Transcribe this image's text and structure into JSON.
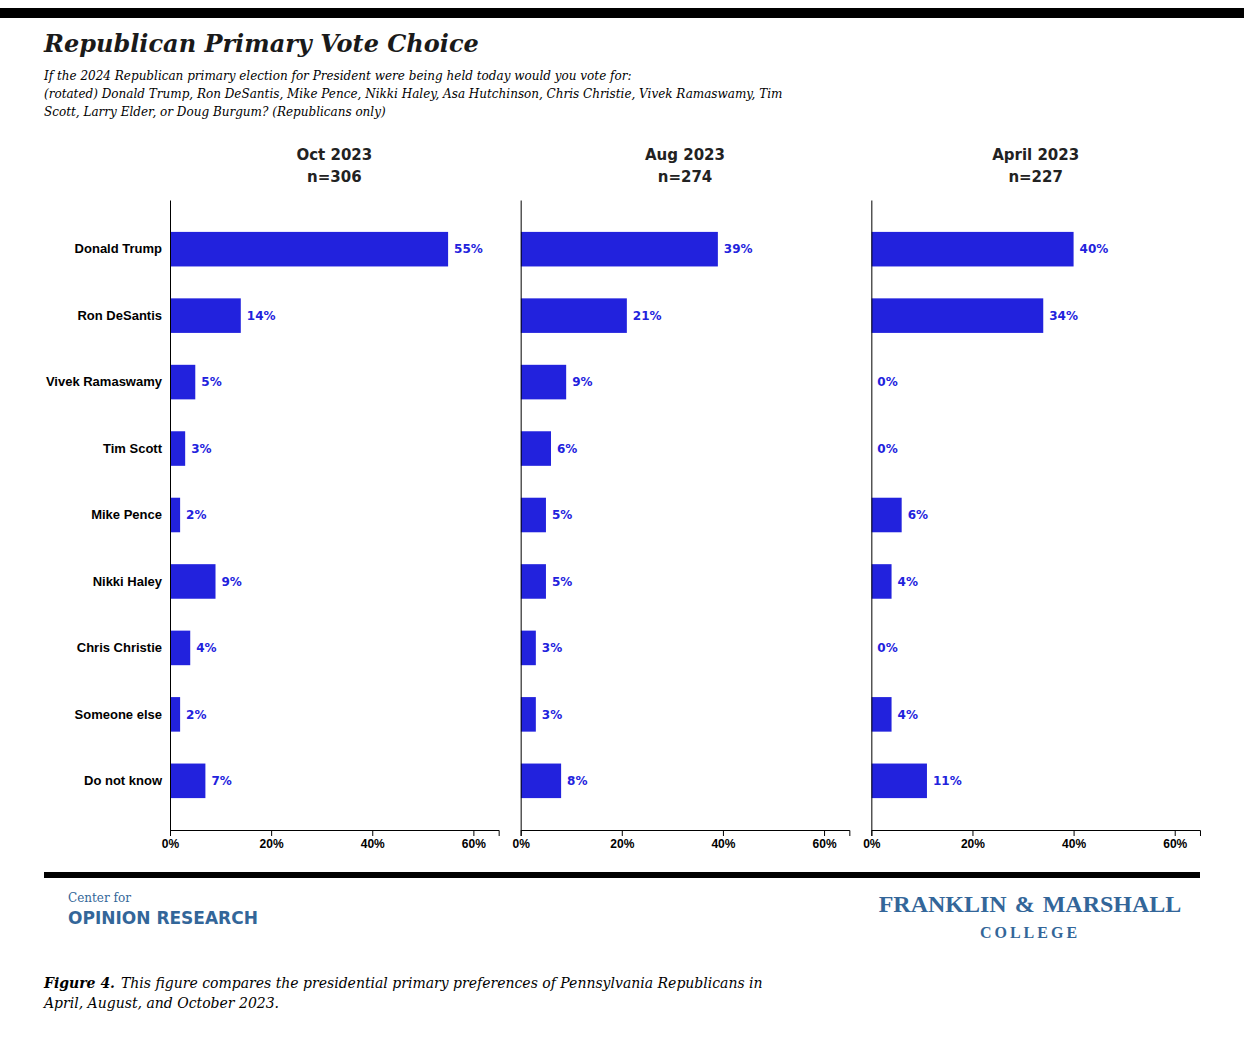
{
  "chart_data": {
    "type": "bar",
    "orientation": "horizontal",
    "title": "Republican Primary Vote Choice",
    "subtitle": [
      "If the 2024 Republican primary election for President were being held today would you vote for:",
      "(rotated) Donald Trump, Ron DeSantis, Mike Pence, Nikki Haley, Asa Hutchinson, Chris Christie, Vivek Ramaswamy, Tim",
      "Scott, Larry Elder, or Doug Burgum? (Republicans only)"
    ],
    "categories": [
      "Donald Trump",
      "Ron DeSantis",
      "Vivek Ramaswamy",
      "Tim Scott",
      "Mike Pence",
      "Nikki Haley",
      "Chris Christie",
      "Someone else",
      "Do not know"
    ],
    "series": [
      {
        "name": "Oct 2023",
        "values": [
          55,
          14,
          5,
          3,
          2,
          9,
          4,
          2,
          7
        ],
        "value_labels": [
          "55%",
          "14%",
          "5%",
          "3%",
          "2%",
          "9%",
          "4%",
          "2%",
          "7%"
        ]
      },
      {
        "name": "Aug 2023",
        "values": [
          39,
          21,
          9,
          6,
          5,
          5,
          3,
          3,
          8
        ],
        "value_labels": [
          "39%",
          "21%",
          "9%",
          "6%",
          "5%",
          "5%",
          "3%",
          "3%",
          "8%"
        ]
      },
      {
        "name": "April 2023",
        "values": [
          40,
          34,
          0,
          0,
          6,
          4,
          0,
          4,
          11
        ],
        "value_labels": [
          "40%",
          "34%",
          "0%",
          "0%",
          "6%",
          "4%",
          "0%",
          "4%",
          "11%"
        ]
      }
    ],
    "color": "#2222dd",
    "xlim": [
      0,
      65
    ],
    "xticks": [
      {
        "value": 0,
        "label": "0%"
      },
      {
        "value": 20,
        "label": "20%"
      },
      {
        "value": 40,
        "label": "40%"
      },
      {
        "value": 60,
        "label": "60%"
      }
    ],
    "grid": false,
    "data_labels": true,
    "annotations": [
      "n=306",
      "n=274",
      "n=227",
      "Center for",
      "OPINION RESEARCH",
      "FRANKLIN",
      "&",
      "MARSHALL",
      "COLLEGE",
      "Figure 4.",
      "This figure compares the presidential primary preferences of Pennsylvania Republicans in",
      "April, August, and October 2023."
    ]
  }
}
